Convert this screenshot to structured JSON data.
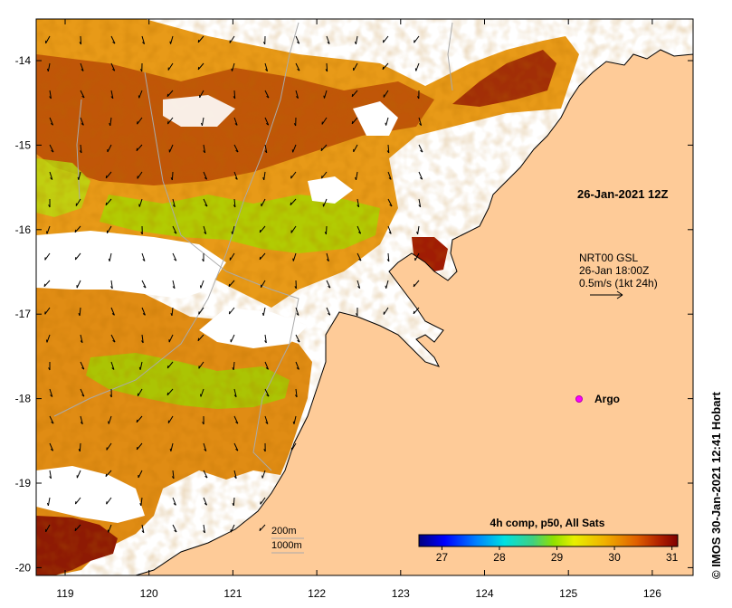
{
  "map": {
    "lon_ticks": [
      "119",
      "120",
      "121",
      "122",
      "123",
      "124",
      "125",
      "126"
    ],
    "lat_ticks": [
      "-14",
      "-15",
      "-16",
      "-17",
      "-18",
      "-19",
      "-20"
    ],
    "land_color": "#fecb98",
    "nodata_color": "#ffffff"
  },
  "annotations": {
    "time_label": "26-Jan-2021 12Z",
    "current_source": "NRT00 GSL",
    "current_time": "26-Jan 18:00Z",
    "current_scale": "0.5m/s (1kt 24h)",
    "argo_label": "Argo",
    "isobath_200": "200m",
    "isobath_1000": "1000m"
  },
  "colorbar": {
    "title": "4h comp, p50, All Sats",
    "ticks": [
      "27",
      "28",
      "29",
      "30",
      "31"
    ],
    "min": 26.6,
    "max": 31.1,
    "colors": [
      "#00007f",
      "#0000ff",
      "#0080ff",
      "#00e0e0",
      "#40d080",
      "#90e000",
      "#e8f000",
      "#f0b000",
      "#e06000",
      "#b02000",
      "#800000"
    ]
  },
  "credit": "© IMOS 30-Jan-2021 12:41 Hobart"
}
